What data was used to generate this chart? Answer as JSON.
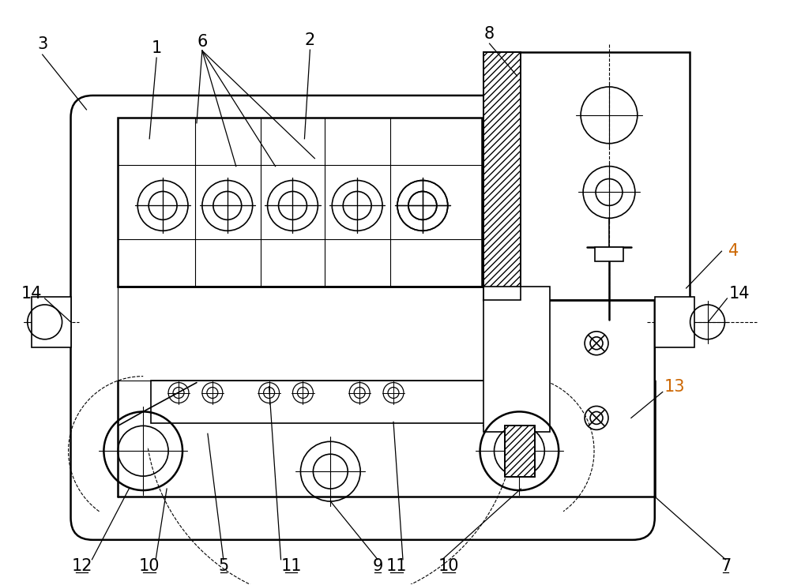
{
  "bg_color": "#FFFFFF",
  "line_color": "#000000",
  "orange": "#CC6600",
  "figsize": [
    10.0,
    7.41
  ],
  "dpi": 100
}
